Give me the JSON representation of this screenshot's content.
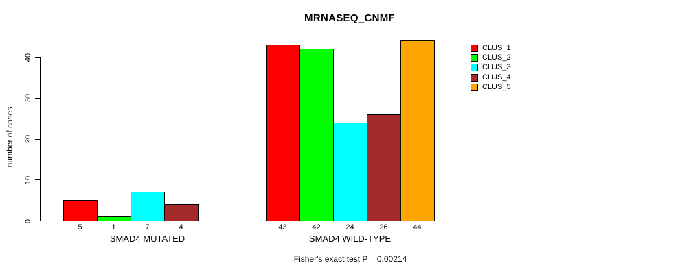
{
  "chart_data": {
    "type": "bar",
    "title": "MRNASEQ_CNMF",
    "ylabel": "number of cases",
    "yticks": [
      0,
      10,
      20,
      30,
      40
    ],
    "ylim": [
      0,
      44
    ],
    "grid": false,
    "legend_position": "right",
    "categories": [
      "SMAD4 MUTATED",
      "SMAD4 WILD-TYPE"
    ],
    "series": [
      {
        "name": "CLUS_1",
        "color": "#ff0000",
        "values": [
          5,
          43
        ]
      },
      {
        "name": "CLUS_2",
        "color": "#00ff00",
        "values": [
          1,
          42
        ]
      },
      {
        "name": "CLUS_3",
        "color": "#00ffff",
        "values": [
          7,
          24
        ]
      },
      {
        "name": "CLUS_4",
        "color": "#a52a2a",
        "values": [
          4,
          26
        ]
      },
      {
        "name": "CLUS_5",
        "color": "#ffa500",
        "values": [
          0,
          44
        ]
      }
    ],
    "bar_value_labels_shown": true,
    "annotation": "Fisher's exact test P = 0.00214"
  }
}
